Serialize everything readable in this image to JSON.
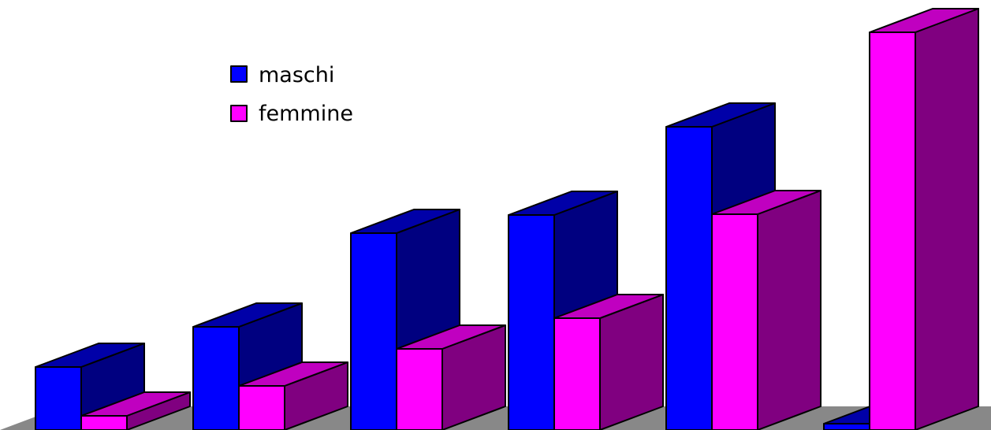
{
  "chart_data": {
    "type": "bar",
    "title": "",
    "xlabel": "",
    "ylabel": "",
    "categories": [
      "",
      "",
      "",
      "",
      "",
      ""
    ],
    "series": [
      {
        "name": "maschi",
        "values": [
          80,
          131,
          250,
          273,
          385,
          8
        ]
      },
      {
        "name": "femmine",
        "values": [
          18,
          56,
          103,
          142,
          274,
          505
        ]
      }
    ],
    "ylim": [
      0,
      550
    ],
    "grid": false,
    "legend_position": "top-left",
    "three_d": true
  },
  "colors": {
    "maschi": {
      "front": "#0000ff",
      "top": "#0000a8",
      "side": "#000080"
    },
    "femmine": {
      "front": "#ff00ff",
      "top": "#c000c0",
      "side": "#800080"
    },
    "floor": "#888888"
  }
}
